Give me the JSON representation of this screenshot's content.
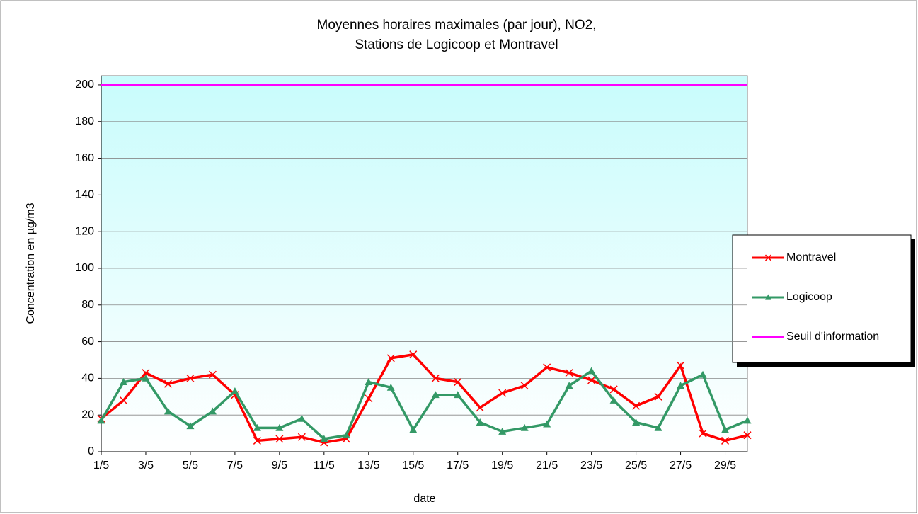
{
  "chart_data": {
    "type": "line",
    "title": [
      "Moyennes horaires maximales (par jour), NO2,",
      "Stations de Logicoop et Montravel"
    ],
    "y_label": "Concentration en µg/m3",
    "x_label": "date",
    "categories": [
      "1/5",
      null,
      "3/5",
      null,
      "5/5",
      null,
      "7/5",
      null,
      "9/5",
      null,
      "11/5",
      null,
      "13/5",
      null,
      "15/5",
      null,
      "17/5",
      null,
      "19/5",
      null,
      "21/5",
      null,
      "23/5",
      null,
      "25/5",
      null,
      "27/5",
      null,
      "29/5",
      null
    ],
    "series": [
      {
        "name": "Montravel",
        "color": "#ff0000",
        "marker": "x",
        "values": [
          18,
          28,
          43,
          37,
          40,
          42,
          31,
          6,
          7,
          8,
          5,
          7,
          29,
          51,
          53,
          40,
          38,
          24,
          32,
          36,
          46,
          43,
          39,
          34,
          25,
          30,
          47,
          10,
          6,
          9
        ]
      },
      {
        "name": "Logicoop",
        "color": "#339966",
        "marker": "triangle",
        "values": [
          17,
          38,
          40,
          22,
          14,
          22,
          33,
          13,
          13,
          18,
          7,
          9,
          38,
          35,
          12,
          31,
          31,
          16,
          11,
          13,
          15,
          36,
          44,
          28,
          16,
          13,
          36,
          42,
          12,
          17
        ]
      },
      {
        "name": "Seuil d'information",
        "color": "#ff00ff",
        "marker": "none",
        "values": [
          200,
          200,
          200,
          200,
          200,
          200,
          200,
          200,
          200,
          200,
          200,
          200,
          200,
          200,
          200,
          200,
          200,
          200,
          200,
          200,
          200,
          200,
          200,
          200,
          200,
          200,
          200,
          200,
          200,
          200
        ]
      }
    ],
    "ylim": [
      0,
      205
    ],
    "yticks": [
      0,
      20,
      40,
      60,
      80,
      100,
      120,
      140,
      160,
      180,
      200
    ],
    "grid": true,
    "legend": "right"
  }
}
